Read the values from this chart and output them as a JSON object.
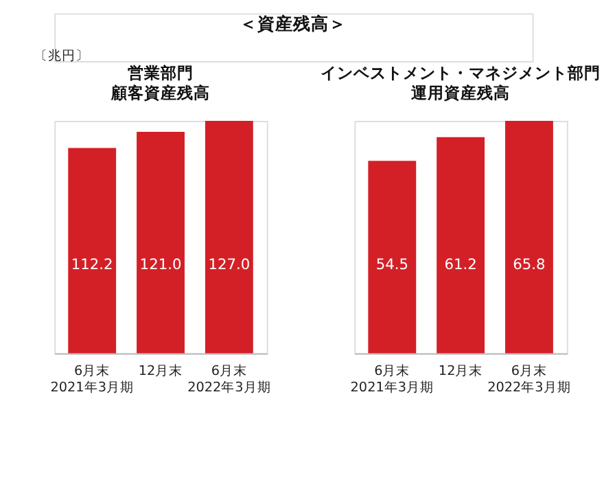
{
  "chart_data": [
    {
      "type": "bar",
      "title": "営業部門",
      "subtitle": "顧客資産残高",
      "annotations": [
        "＜資産残高＞",
        "〔兆円〕"
      ],
      "categories": [
        "6月末\n2021年3月期",
        "12月末",
        "6月末\n2022年3月期"
      ],
      "values": [
        112.2,
        121.0,
        127.0
      ],
      "value_labels": [
        "112.2",
        "121.0",
        "127.0"
      ],
      "color": "#d32027",
      "tick_labels": "x",
      "grid": false
    },
    {
      "type": "bar",
      "title": "インベストメント・マネジメント部門",
      "subtitle": "運用資産残高",
      "categories": [
        "6月末\n2021年3月期",
        "12月末",
        "6月末\n2022年3月期"
      ],
      "values": [
        54.5,
        61.2,
        65.8
      ],
      "value_labels": [
        "54.5",
        "61.2",
        "65.8"
      ],
      "color": "#d32027",
      "tick_labels": "x",
      "grid": false
    }
  ]
}
